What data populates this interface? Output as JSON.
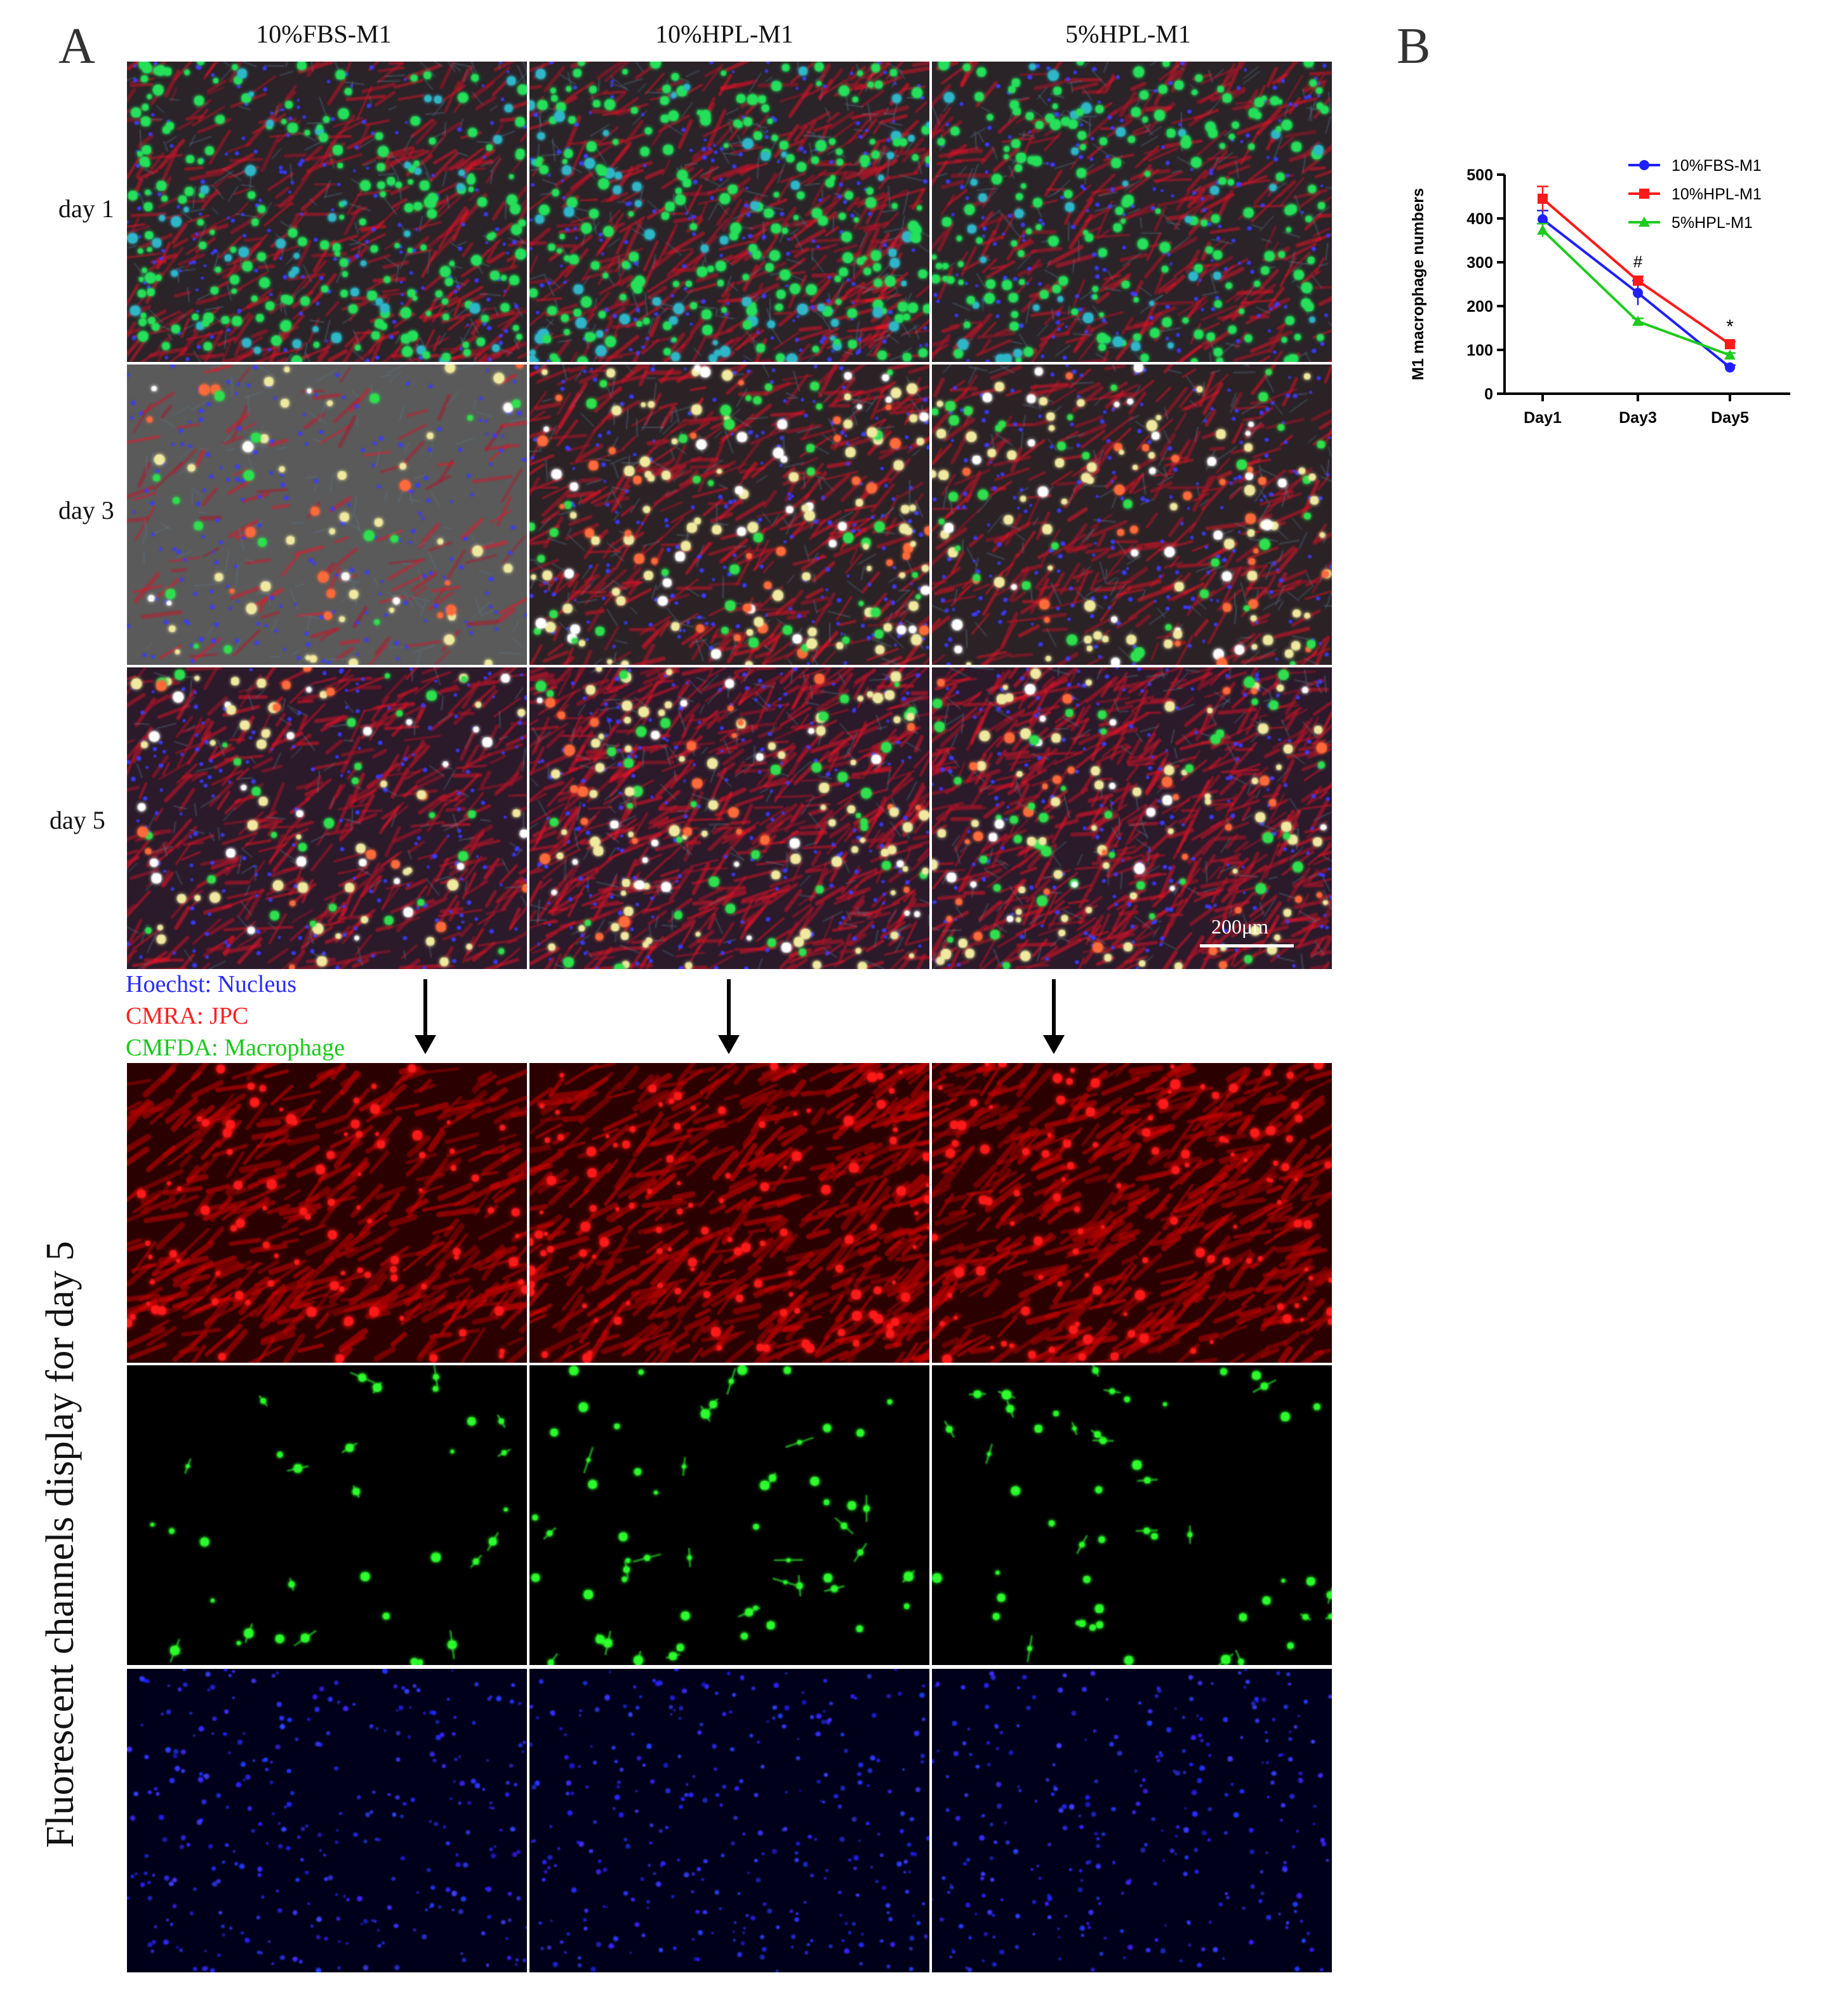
{
  "panels": {
    "a": "A",
    "b": "B"
  },
  "columns": [
    "10%FBS-M1",
    "10%HPL-M1",
    "5%HPL-M1"
  ],
  "rows": [
    "day 1",
    "day 3",
    "day 5"
  ],
  "scale_bar": "200μm",
  "stain_legend": [
    {
      "text": "Hoechst: Nucleus",
      "color": "#2a2aff"
    },
    {
      "text": "CMRA: JPC",
      "color": "#ff2020"
    },
    {
      "text": "CMFDA: Macrophage",
      "color": "#19c919"
    }
  ],
  "vertical_label": "Fluorescent channels display for day 5",
  "chart_data": {
    "type": "line",
    "ylabel": "M1 macrophage numbers",
    "xlabel": "",
    "categories": [
      "Day1",
      "Day3",
      "Day5"
    ],
    "ylim": [
      0,
      500
    ],
    "yticks": [
      0,
      100,
      200,
      300,
      400,
      500
    ],
    "legend_position": "top-right",
    "series": [
      {
        "name": "10%FBS-M1",
        "color": "#1f1fff",
        "marker": "circle",
        "values": [
          398,
          230,
          60
        ],
        "errors": [
          20,
          28,
          5
        ]
      },
      {
        "name": "10%HPL-M1",
        "color": "#ff1a1a",
        "marker": "square",
        "values": [
          445,
          258,
          113
        ],
        "errors": [
          28,
          10,
          6
        ]
      },
      {
        "name": "5%HPL-M1",
        "color": "#1ecb1e",
        "marker": "triangle",
        "values": [
          373,
          165,
          88
        ],
        "errors": [
          15,
          7,
          5
        ]
      }
    ],
    "annotations": [
      {
        "category": "Day3",
        "text": "#"
      },
      {
        "category": "Day5",
        "text": "*"
      }
    ]
  }
}
